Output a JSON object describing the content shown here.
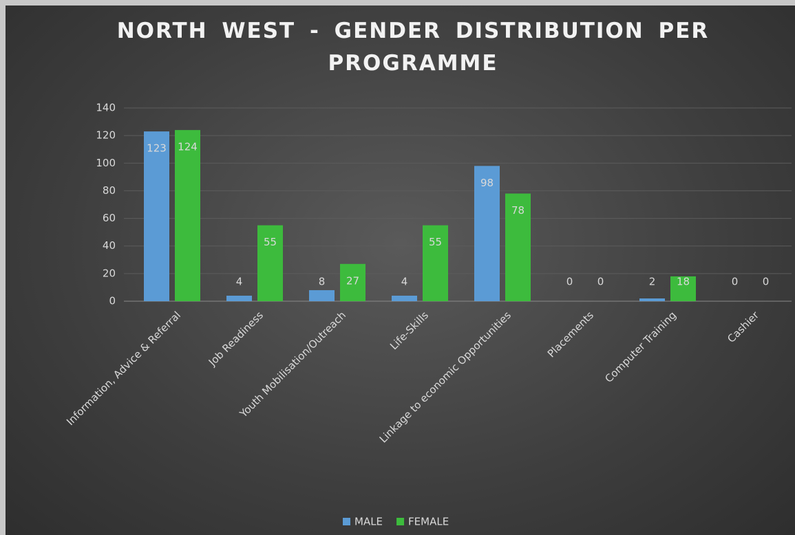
{
  "chart_data": {
    "type": "bar",
    "title": "NORTH WEST - GENDER DISTRIBUTION PER PROGRAMME",
    "categories": [
      "Information, Advice & Referral",
      "Job Readiness",
      "Youth Mobilisation/Outreach",
      "Life-Skills",
      "Linkage to economic Opportunities",
      "Placements",
      "Computer Training",
      "Cashier"
    ],
    "series": [
      {
        "name": "MALE",
        "color": "#5b9bd5",
        "values": [
          123,
          4,
          8,
          4,
          98,
          0,
          2,
          0
        ]
      },
      {
        "name": "FEMALE",
        "color": "#3dbb3d",
        "values": [
          124,
          55,
          27,
          55,
          78,
          0,
          18,
          0
        ]
      }
    ],
    "ylim": [
      0,
      140
    ],
    "yticks": [
      0,
      20,
      40,
      60,
      80,
      100,
      120,
      140
    ],
    "grid": true,
    "legend": "bottom"
  }
}
